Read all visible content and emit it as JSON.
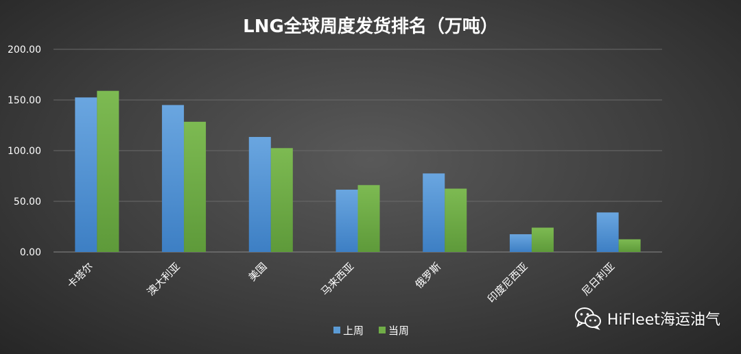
{
  "chart_data": {
    "type": "bar",
    "title": "LNG全球周度发货排名（万吨）",
    "categories": [
      "卡塔尔",
      "澳大利亚",
      "美国",
      "马来西亚",
      "俄罗斯",
      "印度尼西亚",
      "尼日利亚"
    ],
    "series": [
      {
        "name": "上周",
        "color": "#5b9bd5",
        "values": [
          152.5,
          145.0,
          113.5,
          61.5,
          77.5,
          17.5,
          39.0
        ]
      },
      {
        "name": "当周",
        "color": "#70ad47",
        "values": [
          159.0,
          128.5,
          102.5,
          66.0,
          62.5,
          24.0,
          12.5
        ]
      }
    ],
    "ylim": [
      0,
      200
    ],
    "yticks": [
      "0.00",
      "50.00",
      "100.00",
      "150.00",
      "200.00"
    ],
    "grid": true,
    "legend_position": "bottom",
    "xlabel": "",
    "ylabel": ""
  },
  "watermark": {
    "text": "HiFleet海运油气",
    "icon": "wechat-icon"
  }
}
